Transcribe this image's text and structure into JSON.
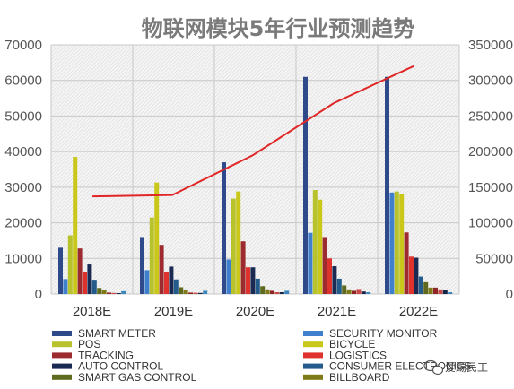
{
  "chart_data": {
    "type": "bar",
    "title": "物联网模块5年行业预测趋势",
    "categories": [
      "2018E",
      "2019E",
      "2020E",
      "2021E",
      "2022E"
    ],
    "ylim": [
      0,
      70000
    ],
    "y_ticks": [
      0,
      10000,
      20000,
      30000,
      40000,
      50000,
      60000,
      70000
    ],
    "y2lim": [
      0,
      350000
    ],
    "y2_ticks": [
      0,
      50000,
      100000,
      150000,
      200000,
      250000,
      300000,
      350000
    ],
    "grid": true,
    "legend_position": "bottom",
    "series": [
      {
        "name": "SMART METER",
        "color": "#2e4a8a",
        "values": [
          13000,
          16000,
          37000,
          61000,
          61000
        ]
      },
      {
        "name": "SECURITY MONITOR",
        "color": "#3f7fcc",
        "values": [
          4200,
          6700,
          9700,
          17200,
          28500
        ]
      },
      {
        "name": "POS",
        "color": "#b8c22c",
        "values": [
          16500,
          21500,
          26800,
          29200,
          28800
        ]
      },
      {
        "name": "BICYCLE",
        "color": "#c9c81a",
        "values": [
          38500,
          31300,
          28800,
          26500,
          28000
        ]
      },
      {
        "name": "TRACKING",
        "color": "#9c2b30",
        "values": [
          12800,
          13800,
          14800,
          16000,
          17300
        ]
      },
      {
        "name": "LOGISTICS",
        "color": "#e0322d",
        "values": [
          6100,
          6100,
          7500,
          10000,
          10500
        ]
      },
      {
        "name": "AUTO CONTROL",
        "color": "#1b2a52",
        "values": [
          8300,
          7700,
          7500,
          7800,
          10200
        ]
      },
      {
        "name": "CONSUMER ELECTRONICS",
        "color": "#235c8a",
        "values": [
          4000,
          4100,
          4300,
          4300,
          4900
        ]
      },
      {
        "name": "SMART GAS CONTROL",
        "color": "#5f6a1e",
        "values": [
          1700,
          1900,
          2200,
          2400,
          3300
        ]
      },
      {
        "name": "BILLBOARD",
        "color": "#7e7a18",
        "values": [
          1200,
          1200,
          1300,
          1300,
          1800
        ]
      },
      {
        "name": "",
        "color": "#8f2626",
        "values": [
          400,
          400,
          900,
          900,
          1800
        ]
      },
      {
        "name": "",
        "color": "#c94848",
        "values": [
          300,
          350,
          500,
          1400,
          1300
        ]
      },
      {
        "name": "",
        "color": "#152347",
        "values": [
          250,
          300,
          500,
          700,
          1000
        ]
      },
      {
        "name": "",
        "color": "#3a86bd",
        "values": [
          800,
          900,
          900,
          500,
          500
        ]
      }
    ],
    "line_series": {
      "axis": "secondary",
      "color": "#e02626",
      "values": [
        137000,
        139000,
        195000,
        268000,
        320000
      ]
    }
  },
  "watermark": {
    "text": "爱踢民工",
    "icon": "wechat-icon"
  }
}
